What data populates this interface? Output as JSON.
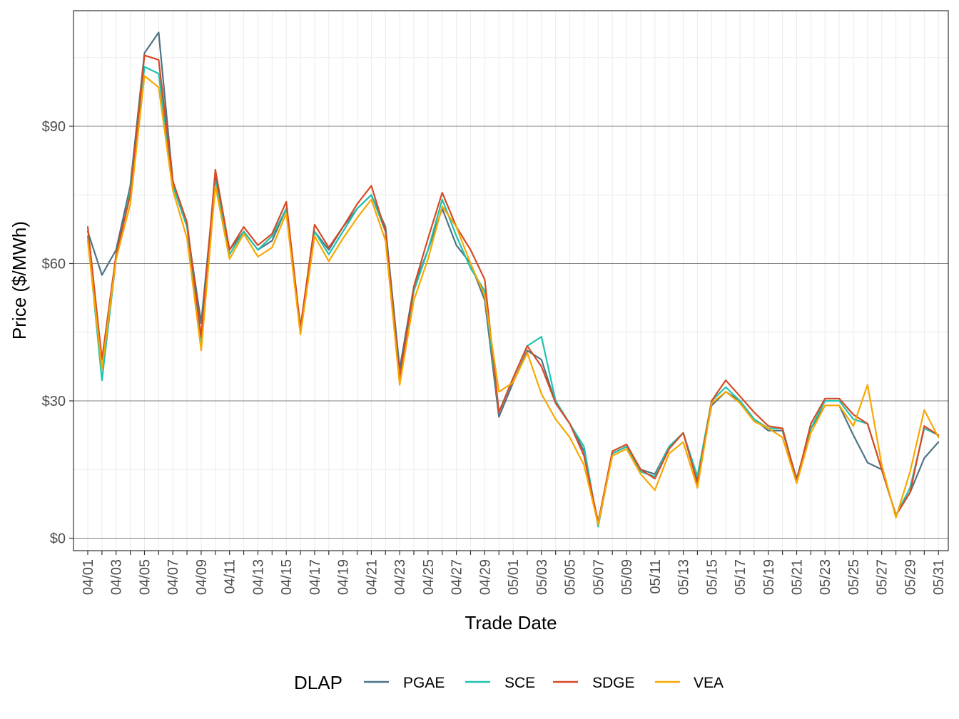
{
  "chart_data": {
    "type": "line",
    "xlabel": "Trade Date",
    "ylabel": "Price ($/MWh)",
    "legend_title": "DLAP",
    "legend_position": "bottom",
    "grid": true,
    "ylim": [
      -2,
      115
    ],
    "y_ticks": [
      0,
      30,
      60,
      90
    ],
    "y_tick_labels": [
      "$0",
      "$30",
      "$60",
      "$90"
    ],
    "x": [
      "04/01",
      "04/02",
      "04/03",
      "04/04",
      "04/05",
      "04/06",
      "04/07",
      "04/08",
      "04/09",
      "04/10",
      "04/11",
      "04/12",
      "04/13",
      "04/14",
      "04/15",
      "04/16",
      "04/17",
      "04/18",
      "04/19",
      "04/20",
      "04/21",
      "04/22",
      "04/23",
      "04/24",
      "04/25",
      "04/26",
      "04/27",
      "04/28",
      "04/29",
      "04/30",
      "05/01",
      "05/02",
      "05/03",
      "05/04",
      "05/05",
      "05/06",
      "05/07",
      "05/08",
      "05/09",
      "05/10",
      "05/11",
      "05/12",
      "05/13",
      "05/14",
      "05/15",
      "05/16",
      "05/17",
      "05/18",
      "05/19",
      "05/20",
      "05/21",
      "05/22",
      "05/23",
      "05/24",
      "05/25",
      "05/26",
      "05/27",
      "05/28",
      "05/29",
      "05/30",
      "05/31"
    ],
    "x_tick_labels": [
      "04/01",
      "04/03",
      "04/05",
      "04/07",
      "04/09",
      "04/11",
      "04/13",
      "04/15",
      "04/17",
      "04/19",
      "04/21",
      "04/23",
      "04/25",
      "04/27",
      "04/29",
      "05/01",
      "05/03",
      "05/05",
      "05/07",
      "05/09",
      "05/11",
      "05/13",
      "05/15",
      "05/17",
      "05/19",
      "05/21",
      "05/23",
      "05/25",
      "05/27",
      "05/29",
      "05/31"
    ],
    "series": [
      {
        "name": "PGAE",
        "color": "#4e7384",
        "values": [
          67,
          57.5,
          63,
          77,
          106,
          110.5,
          78,
          68,
          47,
          79,
          63,
          67,
          63,
          65,
          72,
          46,
          67,
          63,
          68,
          72,
          75,
          68,
          37,
          55,
          63,
          72,
          64,
          60,
          52,
          26.5,
          34,
          41,
          39,
          29.5,
          25,
          19,
          3,
          18.5,
          20,
          15,
          14,
          20,
          23,
          13,
          29,
          32,
          30,
          26,
          23.5,
          23.5,
          13,
          24,
          29,
          29,
          22.5,
          16.5,
          15,
          5,
          10,
          17.5,
          21
        ]
      },
      {
        "name": "SCE",
        "color": "#1dc3b0",
        "values": [
          66,
          34.5,
          61,
          76,
          103,
          101.5,
          77,
          68,
          43,
          78,
          62,
          67,
          63,
          66,
          72,
          46,
          67,
          62,
          67,
          72,
          75,
          67,
          35,
          54,
          63,
          74,
          66,
          59,
          54,
          27.5,
          35,
          42,
          44,
          30,
          25,
          20,
          2.5,
          18.5,
          20,
          14.5,
          13.5,
          20,
          23,
          13.5,
          30,
          33,
          30,
          26,
          24,
          24,
          12.5,
          24,
          30,
          30,
          26,
          25,
          15,
          5,
          11,
          24,
          22.5
        ]
      },
      {
        "name": "SDGE",
        "color": "#d64a25",
        "values": [
          68,
          39,
          62,
          75,
          105.5,
          104.5,
          78,
          69,
          44,
          80.5,
          63,
          68,
          64,
          66.5,
          73.5,
          46,
          68.5,
          63.5,
          68,
          73,
          77,
          67,
          35,
          55,
          65.5,
          75.5,
          68,
          63,
          56.5,
          27.5,
          35,
          42,
          37.5,
          29.5,
          25,
          18,
          3.5,
          19,
          20.5,
          15,
          13,
          19.5,
          23,
          12,
          30,
          34.5,
          31,
          27.5,
          24.5,
          24,
          12.5,
          25,
          30.5,
          30.5,
          27,
          25,
          15,
          5,
          10,
          24.5,
          22.5
        ]
      },
      {
        "name": "VEA",
        "color": "#f9a700",
        "values": [
          65,
          37,
          61,
          73,
          101,
          98.5,
          76,
          65.5,
          41,
          77,
          61,
          66.5,
          61.5,
          63.5,
          71,
          44.5,
          66,
          60.5,
          65.5,
          70,
          74,
          65,
          33.5,
          52,
          61,
          72.5,
          68,
          60,
          53,
          32,
          34,
          40.5,
          31.5,
          26,
          22,
          16,
          3,
          18,
          19.5,
          14,
          10.5,
          18.5,
          21,
          11,
          29.5,
          32,
          29.5,
          25.5,
          24,
          22,
          12,
          23,
          29,
          29,
          24.5,
          33.5,
          16,
          4.5,
          14.5,
          28,
          22
        ]
      }
    ]
  }
}
